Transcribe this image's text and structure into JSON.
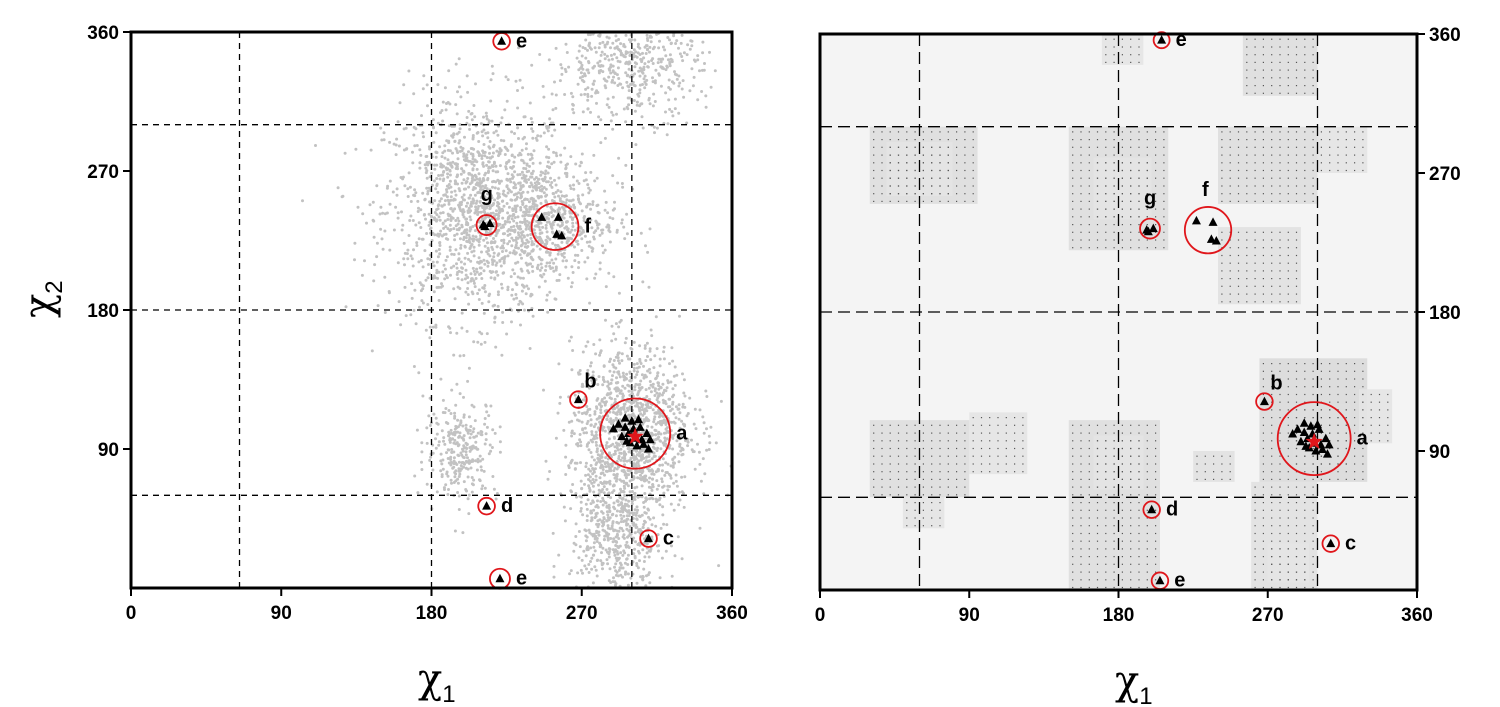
{
  "chart_data": [
    {
      "type": "scatter",
      "panel": "left",
      "x_label": "χ",
      "x_label_sub": "1",
      "y_label": "χ",
      "y_label_sub": "2",
      "xlim": [
        0,
        360
      ],
      "ylim": [
        0,
        360
      ],
      "x_ticks": [
        0,
        90,
        180,
        270,
        360
      ],
      "y_ticks": [
        90,
        180,
        270,
        360
      ],
      "y_axis_side": "left",
      "background": "gray point cloud",
      "background_color": "#c2c2c2",
      "dashed_lines_x": [
        65,
        180,
        300
      ],
      "dashed_lines_y": [
        60,
        180,
        300
      ],
      "density_clusters": [
        {
          "x": 208,
          "y": 245,
          "sx": 28,
          "sy": 36,
          "n": 1400
        },
        {
          "x": 248,
          "y": 238,
          "sx": 22,
          "sy": 20,
          "n": 550
        },
        {
          "x": 300,
          "y": 105,
          "sx": 18,
          "sy": 26,
          "n": 1100
        },
        {
          "x": 292,
          "y": 40,
          "sx": 14,
          "sy": 28,
          "n": 650
        },
        {
          "x": 298,
          "y": 340,
          "sx": 22,
          "sy": 18,
          "n": 500
        },
        {
          "x": 198,
          "y": 90,
          "sx": 11,
          "sy": 16,
          "n": 280
        }
      ],
      "clusters": [
        {
          "label": "a",
          "x": 302,
          "y": 100,
          "radius": 21
        },
        {
          "label": "b",
          "x": 268,
          "y": 122,
          "radius": 5
        },
        {
          "label": "c",
          "x": 310,
          "y": 32,
          "radius": 5
        },
        {
          "label": "d",
          "x": 213,
          "y": 53,
          "radius": 5
        },
        {
          "label": "e",
          "x": 222,
          "y": 354,
          "radius": 5
        },
        {
          "label": "e",
          "x": 221,
          "y": 6,
          "radius": 6
        },
        {
          "label": "f",
          "x": 254,
          "y": 234,
          "radius": 14
        },
        {
          "label": "g",
          "x": 213,
          "y": 235,
          "radius": 6
        }
      ],
      "points": [
        [
          292,
          106
        ],
        [
          296,
          110
        ],
        [
          300,
          108
        ],
        [
          305,
          104
        ],
        [
          298,
          100
        ],
        [
          302,
          97
        ],
        [
          306,
          96
        ],
        [
          294,
          98
        ],
        [
          309,
          100
        ],
        [
          303,
          92
        ],
        [
          299,
          94
        ],
        [
          307,
          93
        ],
        [
          310,
          90
        ],
        [
          289,
          103
        ],
        [
          301,
          103
        ],
        [
          297,
          95
        ],
        [
          304,
          109
        ],
        [
          311,
          96
        ],
        [
          296,
          104
        ],
        [
          268,
          122
        ],
        [
          310,
          32
        ],
        [
          213,
          53
        ],
        [
          222,
          354
        ],
        [
          221,
          6
        ],
        [
          246,
          240
        ],
        [
          256,
          240
        ],
        [
          255,
          229
        ],
        [
          258,
          228
        ],
        [
          211,
          235
        ],
        [
          215,
          236
        ],
        [
          212,
          234
        ]
      ],
      "reference_star": {
        "x": 302,
        "y": 98
      }
    },
    {
      "type": "heatmap",
      "panel": "right",
      "x_label": "χ",
      "x_label_sub": "1",
      "xlim": [
        0,
        360
      ],
      "ylim": [
        0,
        360
      ],
      "x_ticks": [
        0,
        90,
        180,
        270,
        360
      ],
      "y_ticks": [
        90,
        180,
        270,
        360
      ],
      "y_axis_side": "right",
      "background_color": "#f4f4f4",
      "dashed_lines_x": [
        60,
        180,
        300
      ],
      "dashed_lines_y": [
        60,
        180,
        300
      ],
      "density_cells": [
        {
          "x0": 30,
          "x1": 95,
          "y0": 250,
          "y1": 300,
          "level": 0.14
        },
        {
          "x0": 40,
          "x1": 80,
          "y0": 255,
          "y1": 290,
          "level": 0.1
        },
        {
          "x0": 150,
          "x1": 210,
          "y0": 220,
          "y1": 300,
          "level": 0.14
        },
        {
          "x0": 165,
          "x1": 200,
          "y0": 240,
          "y1": 280,
          "level": 0.1
        },
        {
          "x0": 240,
          "x1": 300,
          "y0": 250,
          "y1": 300,
          "level": 0.14
        },
        {
          "x0": 300,
          "x1": 330,
          "y0": 270,
          "y1": 300,
          "level": 0.1
        },
        {
          "x0": 255,
          "x1": 300,
          "y0": 320,
          "y1": 360,
          "level": 0.14
        },
        {
          "x0": 170,
          "x1": 195,
          "y0": 340,
          "y1": 360,
          "level": 0.1
        },
        {
          "x0": 240,
          "x1": 290,
          "y0": 185,
          "y1": 235,
          "level": 0.12
        },
        {
          "x0": 30,
          "x1": 90,
          "y0": 60,
          "y1": 110,
          "level": 0.14
        },
        {
          "x0": 90,
          "x1": 125,
          "y0": 75,
          "y1": 115,
          "level": 0.1
        },
        {
          "x0": 50,
          "x1": 75,
          "y0": 40,
          "y1": 60,
          "level": 0.1
        },
        {
          "x0": 150,
          "x1": 205,
          "y0": 0,
          "y1": 110,
          "level": 0.14
        },
        {
          "x0": 165,
          "x1": 195,
          "y0": 65,
          "y1": 100,
          "level": 0.1
        },
        {
          "x0": 225,
          "x1": 250,
          "y0": 70,
          "y1": 90,
          "level": 0.12
        },
        {
          "x0": 265,
          "x1": 330,
          "y0": 70,
          "y1": 150,
          "level": 0.16
        },
        {
          "x0": 285,
          "x1": 320,
          "y0": 80,
          "y1": 120,
          "level": 0.14
        },
        {
          "x0": 260,
          "x1": 300,
          "y0": 0,
          "y1": 70,
          "level": 0.12
        },
        {
          "x0": 270,
          "x1": 295,
          "y0": 5,
          "y1": 30,
          "level": 0.1
        },
        {
          "x0": 325,
          "x1": 345,
          "y0": 95,
          "y1": 130,
          "level": 0.1
        }
      ],
      "clusters": [
        {
          "label": "a",
          "x": 298,
          "y": 98,
          "radius": 22
        },
        {
          "label": "b",
          "x": 268,
          "y": 122,
          "radius": 5
        },
        {
          "label": "c",
          "x": 308,
          "y": 30,
          "radius": 5
        },
        {
          "label": "d",
          "x": 200,
          "y": 52,
          "radius": 5
        },
        {
          "label": "e",
          "x": 206,
          "y": 356,
          "radius": 4
        },
        {
          "label": "e",
          "x": 205,
          "y": 6,
          "radius": 5
        },
        {
          "label": "f",
          "x": 234,
          "y": 233,
          "radius": 14
        },
        {
          "label": "g",
          "x": 199,
          "y": 234,
          "radius": 6
        }
      ],
      "points": [
        [
          288,
          104
        ],
        [
          292,
          108
        ],
        [
          296,
          106
        ],
        [
          301,
          104
        ],
        [
          294,
          98
        ],
        [
          298,
          95
        ],
        [
          302,
          94
        ],
        [
          290,
          96
        ],
        [
          305,
          98
        ],
        [
          299,
          90
        ],
        [
          295,
          92
        ],
        [
          303,
          91
        ],
        [
          306,
          88
        ],
        [
          285,
          101
        ],
        [
          297,
          101
        ],
        [
          293,
          93
        ],
        [
          300,
          107
        ],
        [
          307,
          94
        ],
        [
          292,
          102
        ],
        [
          268,
          122
        ],
        [
          308,
          30
        ],
        [
          200,
          52
        ],
        [
          206,
          356
        ],
        [
          205,
          6
        ],
        [
          227,
          239
        ],
        [
          237,
          238
        ],
        [
          236,
          227
        ],
        [
          239,
          226
        ],
        [
          197,
          233
        ],
        [
          201,
          234
        ],
        [
          198,
          232
        ]
      ],
      "reference_star": {
        "x": 298,
        "y": 96
      }
    }
  ]
}
